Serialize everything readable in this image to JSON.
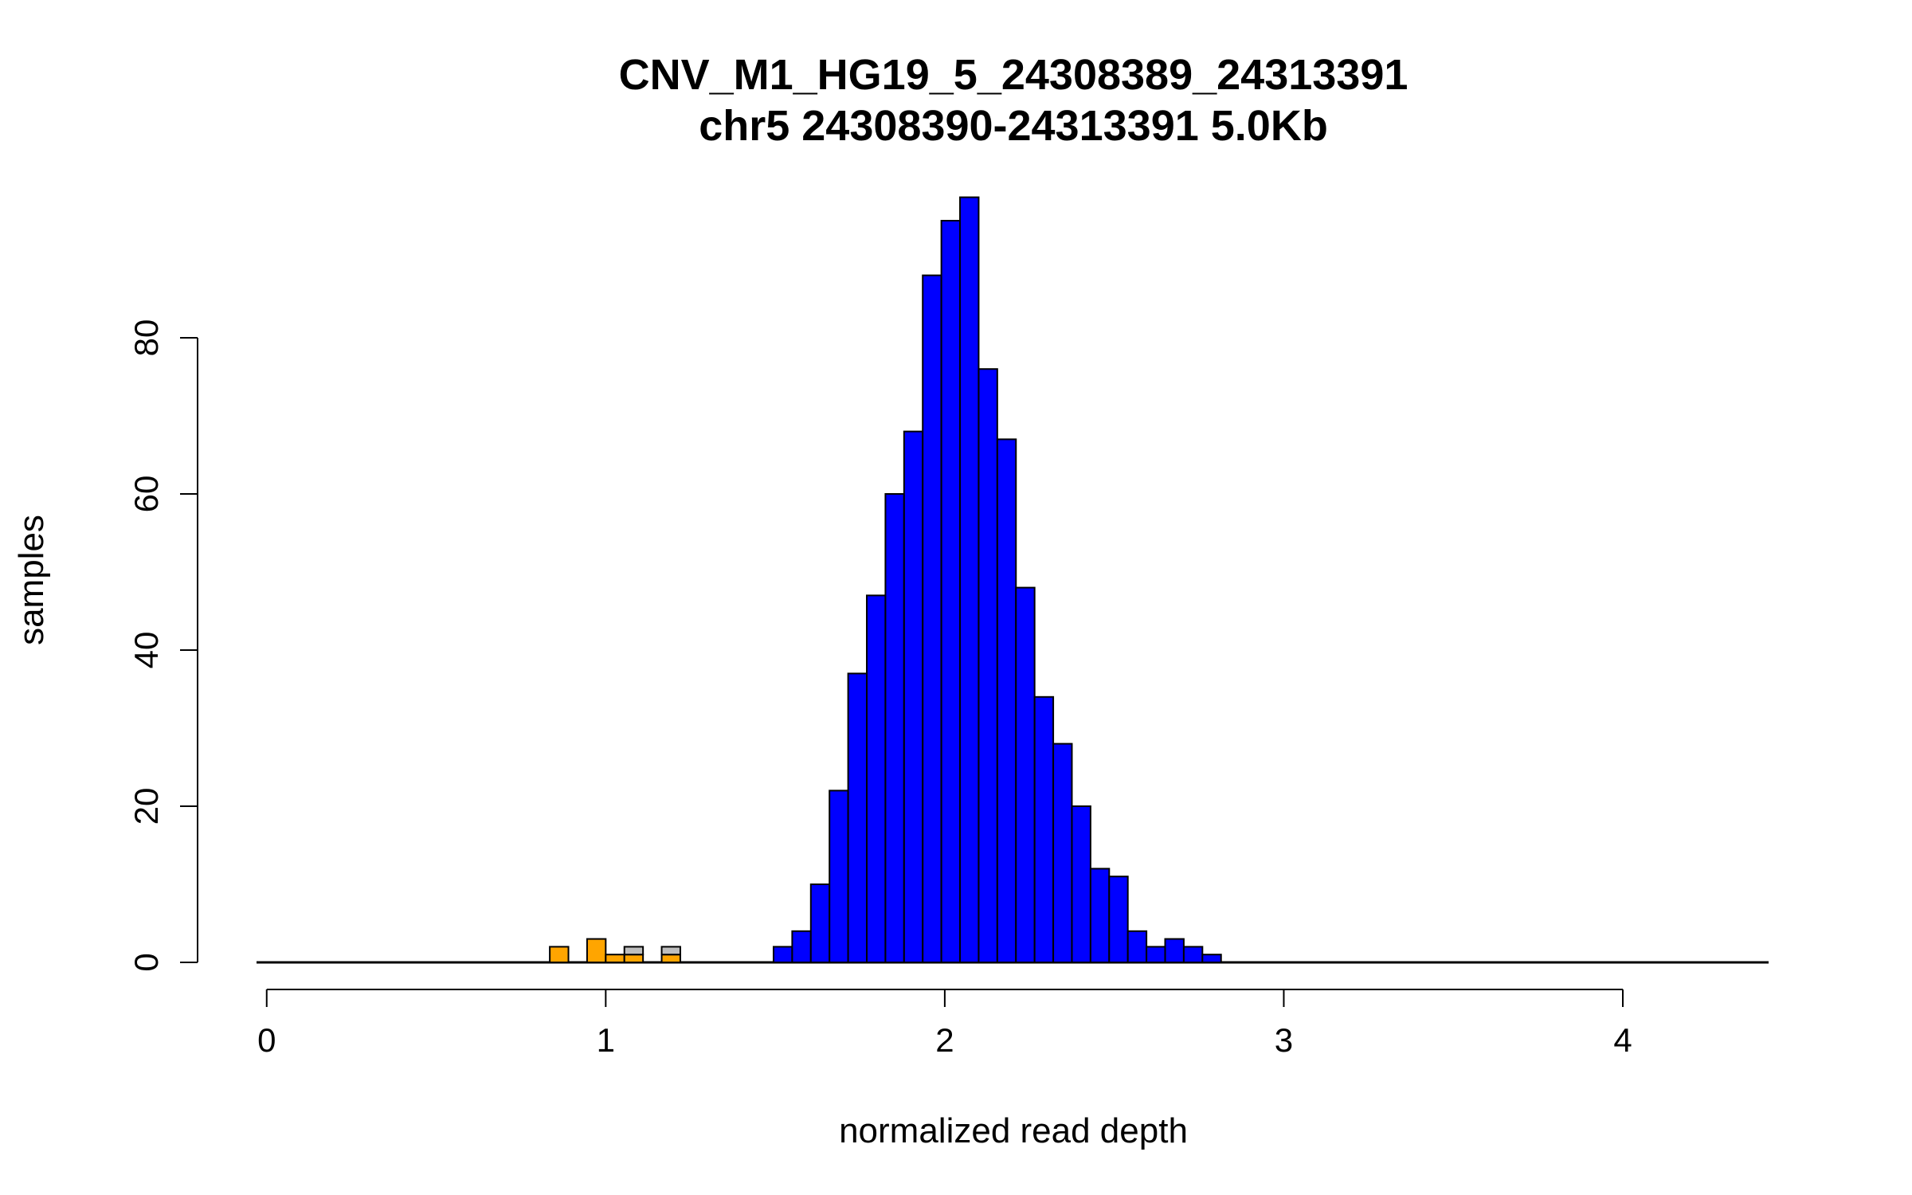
{
  "colors": {
    "normal": "#0000ff",
    "deletion": "#ffa500",
    "other": "#bebebe",
    "outline": "#000000",
    "background": "#ffffff"
  },
  "chart_data": {
    "type": "bar",
    "subtype": "stacked-histogram",
    "title": "CNV_M1_HG19_5_24308389_24313391",
    "subtitle": "chr5 24308390-24313391 5.0Kb",
    "xlabel": "normalized read depth",
    "ylabel": "samples",
    "xlim": [
      -0.03,
      4.43
    ],
    "ylim": [
      0,
      98
    ],
    "x_ticks": [
      "0",
      "1",
      "2",
      "3",
      "4"
    ],
    "y_ticks": [
      "0",
      "20",
      "40",
      "60",
      "80"
    ],
    "grid": false,
    "bin_width": 0.055,
    "series": [
      {
        "name": "deletion",
        "color_key": "deletion",
        "bins": [
          {
            "x0": 0.835,
            "x1": 0.89,
            "count": 2
          },
          {
            "x0": 0.945,
            "x1": 1.0,
            "count": 3
          },
          {
            "x0": 1.0,
            "x1": 1.055,
            "count": 1
          },
          {
            "x0": 1.055,
            "x1": 1.11,
            "count": 1
          },
          {
            "x0": 1.165,
            "x1": 1.22,
            "count": 1
          }
        ]
      },
      {
        "name": "other",
        "color_key": "other",
        "bins": [
          {
            "x0": 1.055,
            "x1": 1.11,
            "count": 1,
            "base": 1
          },
          {
            "x0": 1.165,
            "x1": 1.22,
            "count": 1,
            "base": 1
          }
        ]
      },
      {
        "name": "normal",
        "color_key": "normal",
        "bins": [
          {
            "x0": 1.495,
            "x1": 1.55,
            "count": 2
          },
          {
            "x0": 1.55,
            "x1": 1.605,
            "count": 4
          },
          {
            "x0": 1.605,
            "x1": 1.66,
            "count": 10
          },
          {
            "x0": 1.66,
            "x1": 1.715,
            "count": 22
          },
          {
            "x0": 1.715,
            "x1": 1.77,
            "count": 37
          },
          {
            "x0": 1.77,
            "x1": 1.825,
            "count": 47
          },
          {
            "x0": 1.825,
            "x1": 1.88,
            "count": 60
          },
          {
            "x0": 1.88,
            "x1": 1.935,
            "count": 68
          },
          {
            "x0": 1.935,
            "x1": 1.99,
            "count": 88
          },
          {
            "x0": 1.99,
            "x1": 2.045,
            "count": 95
          },
          {
            "x0": 2.045,
            "x1": 2.1,
            "count": 98
          },
          {
            "x0": 2.1,
            "x1": 2.155,
            "count": 76
          },
          {
            "x0": 2.155,
            "x1": 2.21,
            "count": 67
          },
          {
            "x0": 2.21,
            "x1": 2.265,
            "count": 48
          },
          {
            "x0": 2.265,
            "x1": 2.32,
            "count": 34
          },
          {
            "x0": 2.32,
            "x1": 2.375,
            "count": 28
          },
          {
            "x0": 2.375,
            "x1": 2.43,
            "count": 20
          },
          {
            "x0": 2.43,
            "x1": 2.485,
            "count": 12
          },
          {
            "x0": 2.485,
            "x1": 2.54,
            "count": 11
          },
          {
            "x0": 2.54,
            "x1": 2.595,
            "count": 4
          },
          {
            "x0": 2.595,
            "x1": 2.65,
            "count": 2
          },
          {
            "x0": 2.65,
            "x1": 2.705,
            "count": 3
          },
          {
            "x0": 2.705,
            "x1": 2.76,
            "count": 2
          },
          {
            "x0": 2.76,
            "x1": 2.815,
            "count": 1
          }
        ]
      }
    ]
  }
}
